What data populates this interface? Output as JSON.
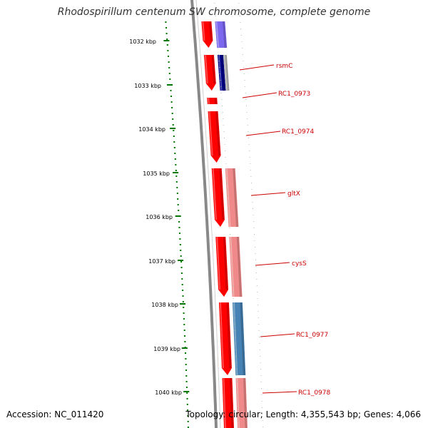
{
  "title": "Rhodospirillum centenum SW chromosome, complete genome",
  "accession": "Accession: NC_011420",
  "topology": "Topology: circular; Length: 4,355,543 bp; Genes: 4,066",
  "kbp_labels": [
    "1032 kbp",
    "1033 kbp",
    "1034 kbp",
    "1035 kbp",
    "1036 kbp",
    "1037 kbp",
    "1038 kbp",
    "1039 kbp",
    "1040 kbp"
  ],
  "gene_labels": [
    "rsmC",
    "RC1_0973",
    "RC1_0974",
    "gltX",
    "cysS",
    "RC1_0977",
    "RC1_0978"
  ],
  "colors": {
    "backbone": "#888888",
    "cds_plus": "#ff0000",
    "cds_shadow": "#b00000",
    "ticks": "#007700",
    "label": "#cc0000",
    "pink": "#f08a8a",
    "purple": "#7b68ee",
    "navy": "#00008b",
    "steelblue": "#4682b4"
  }
}
